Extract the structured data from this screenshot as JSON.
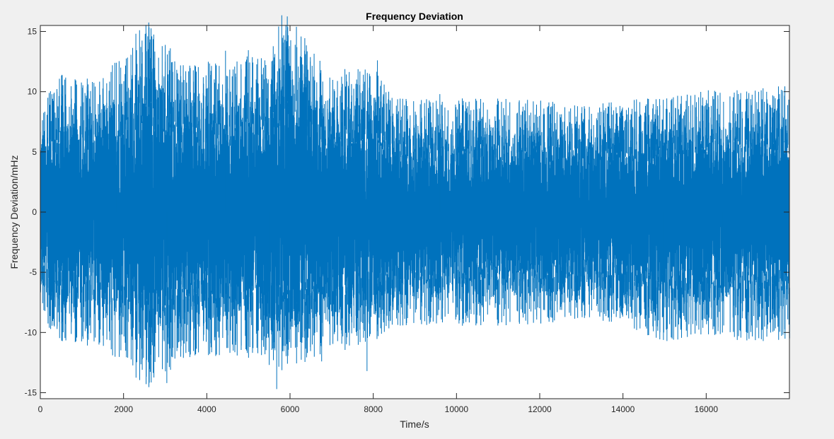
{
  "chart_data": {
    "type": "line",
    "title": "Frequency Deviation",
    "xlabel": "Time/s",
    "ylabel": "Frequency Deviation/mHz",
    "xlim": [
      0,
      18000
    ],
    "ylim": [
      -15.5,
      15.5
    ],
    "xticks": [
      0,
      2000,
      4000,
      6000,
      8000,
      10000,
      12000,
      14000,
      16000
    ],
    "yticks": [
      -15,
      -10,
      -5,
      0,
      5,
      10,
      15
    ],
    "grid": false,
    "legend": "none",
    "series": [
      {
        "color": "#0072bd",
        "envelope_x": [
          0,
          500,
          1000,
          1500,
          2000,
          2500,
          3000,
          3500,
          4000,
          4500,
          5000,
          5500,
          5900,
          6500,
          7000,
          7500,
          8000,
          8500,
          9000,
          10000,
          11000,
          12000,
          13000,
          14000,
          15000,
          16000,
          17000,
          18000
        ],
        "envelope_upper": [
          6.5,
          8.5,
          8.0,
          9.0,
          10.0,
          12.0,
          10.5,
          9.0,
          9.5,
          9.0,
          10.0,
          9.5,
          13.0,
          10.0,
          8.5,
          9.0,
          9.0,
          7.0,
          7.0,
          7.0,
          7.0,
          7.0,
          6.5,
          7.0,
          7.0,
          7.5,
          7.5,
          8.0
        ],
        "envelope_lower": [
          -6.5,
          -8.0,
          -8.0,
          -9.0,
          -9.5,
          -11.0,
          -10.0,
          -9.0,
          -9.0,
          -9.0,
          -9.0,
          -9.0,
          -10.0,
          -9.0,
          -8.5,
          -8.5,
          -8.0,
          -7.0,
          -7.0,
          -7.0,
          -7.0,
          -7.0,
          -6.5,
          -7.0,
          -8.0,
          -7.5,
          -8.0,
          -8.0
        ],
        "peaks": [
          {
            "x": 520,
            "y": 11.4
          },
          {
            "x": 1250,
            "y": 10.8
          },
          {
            "x": 1830,
            "y": 12.4
          },
          {
            "x": 2520,
            "y": 14.8
          },
          {
            "x": 2580,
            "y": 14.6
          },
          {
            "x": 2680,
            "y": 14.6
          },
          {
            "x": 3000,
            "y": 12.5
          },
          {
            "x": 4450,
            "y": 13.4
          },
          {
            "x": 5900,
            "y": 15.1
          },
          {
            "x": 6350,
            "y": 13.4
          },
          {
            "x": 8100,
            "y": 12.6
          },
          {
            "x": 9600,
            "y": 9.8
          },
          {
            "x": 12100,
            "y": 8.6
          },
          {
            "x": 17750,
            "y": 9.4
          },
          {
            "x": 850,
            "y": -9.2
          },
          {
            "x": 1410,
            "y": -11.0
          },
          {
            "x": 2480,
            "y": -12.1
          },
          {
            "x": 2610,
            "y": -13.5
          },
          {
            "x": 3040,
            "y": -14.2
          },
          {
            "x": 5500,
            "y": -12.7
          },
          {
            "x": 5680,
            "y": -14.7
          },
          {
            "x": 6760,
            "y": -12.4
          },
          {
            "x": 7850,
            "y": -13.2
          },
          {
            "x": 14980,
            "y": -10.0
          },
          {
            "x": 16390,
            "y": -10.0
          },
          {
            "x": 17550,
            "y": -10.0
          }
        ]
      }
    ]
  }
}
